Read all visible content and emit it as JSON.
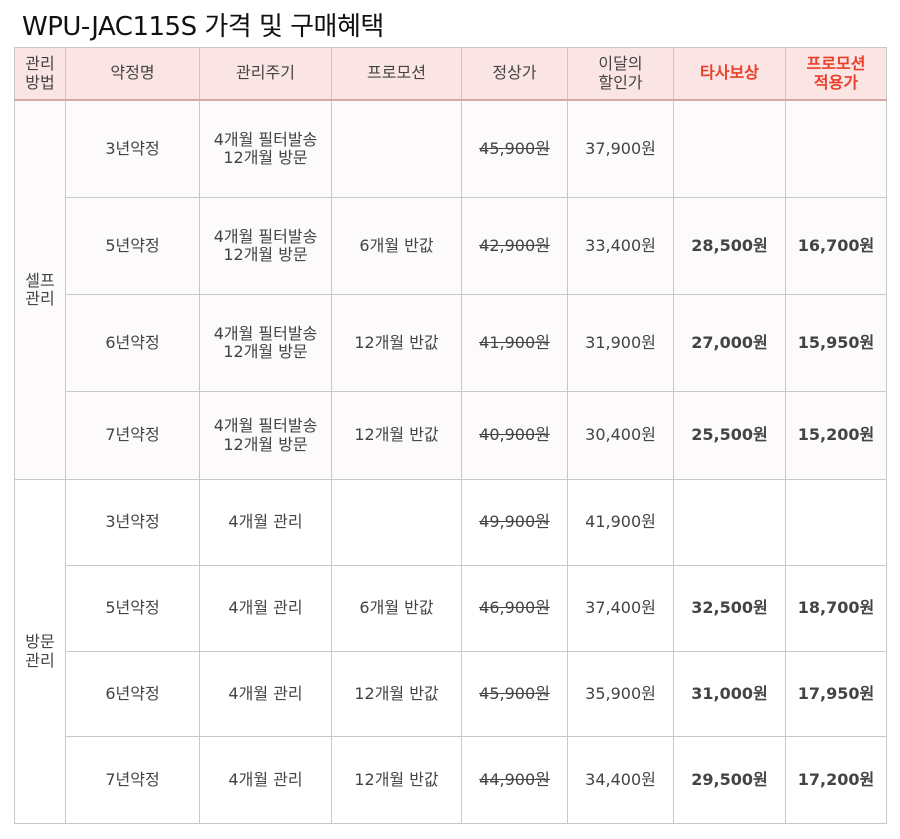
{
  "title": "WPU-JAC115S 가격 및 구매혜택",
  "headers": {
    "manage_type": "관리\n방법",
    "plan": "약정명",
    "cycle": "관리주기",
    "promo": "프로모션",
    "list_price": "정상가",
    "month_discount": "이달의\n할인가",
    "competitor_comp": "타사보상",
    "promo_price": "프로모션\n적용가"
  },
  "groups": {
    "self": "셀프\n관리",
    "visit": "방문\n관리"
  },
  "rows": [
    {
      "plan": "3년약정",
      "cycle": "4개월 필터발송\n12개월 방문",
      "promo": "",
      "list_price": "45,900원",
      "discount": "37,900원",
      "comp": "",
      "promo_price": ""
    },
    {
      "plan": "5년약정",
      "cycle": "4개월 필터발송\n12개월 방문",
      "promo": "6개월 반값",
      "list_price": "42,900원",
      "discount": "33,400원",
      "comp": "28,500원",
      "promo_price": "16,700원"
    },
    {
      "plan": "6년약정",
      "cycle": "4개월 필터발송\n12개월 방문",
      "promo": "12개월 반값",
      "list_price": "41,900원",
      "discount": "31,900원",
      "comp": "27,000원",
      "promo_price": "15,950원"
    },
    {
      "plan": "7년약정",
      "cycle": "4개월 필터발송\n12개월 방문",
      "promo": "12개월 반값",
      "list_price": "40,900원",
      "discount": "30,400원",
      "comp": "25,500원",
      "promo_price": "15,200원"
    },
    {
      "plan": "3년약정",
      "cycle": "4개월 관리",
      "promo": "",
      "list_price": "49,900원",
      "discount": "41,900원",
      "comp": "",
      "promo_price": ""
    },
    {
      "plan": "5년약정",
      "cycle": "4개월 관리",
      "promo": "6개월 반값",
      "list_price": "46,900원",
      "discount": "37,400원",
      "comp": "32,500원",
      "promo_price": "18,700원"
    },
    {
      "plan": "6년약정",
      "cycle": "4개월 관리",
      "promo": "12개월 반값",
      "list_price": "45,900원",
      "discount": "35,900원",
      "comp": "31,000원",
      "promo_price": "17,950원"
    },
    {
      "plan": "7년약정",
      "cycle": "4개월 관리",
      "promo": "12개월 반값",
      "list_price": "44,900원",
      "discount": "34,400원",
      "comp": "29,500원",
      "promo_price": "17,200원"
    }
  ],
  "colors": {
    "header_bg": "#fbe4e4",
    "accent_red": "#e8402a"
  }
}
